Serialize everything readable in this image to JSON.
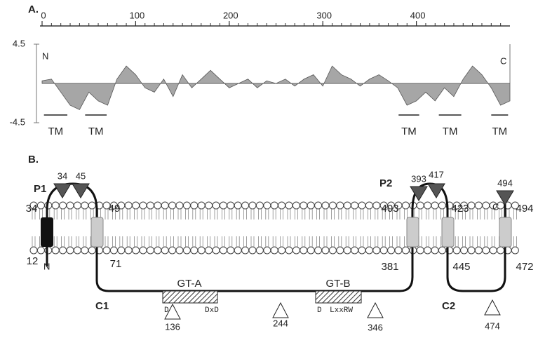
{
  "panel_a": {
    "label": "A.",
    "xlim": [
      0,
      500
    ],
    "xticks": [
      0,
      100,
      200,
      300,
      400
    ],
    "ylim": [
      -4.5,
      4.5
    ],
    "yticks": [
      4.5,
      -4.5
    ],
    "x": [
      0,
      10,
      20,
      30,
      40,
      50,
      60,
      70,
      80,
      90,
      100,
      110,
      120,
      130,
      140,
      150,
      160,
      170,
      180,
      190,
      200,
      210,
      220,
      230,
      240,
      250,
      260,
      270,
      280,
      290,
      300,
      310,
      320,
      330,
      340,
      350,
      360,
      370,
      380,
      390,
      400,
      410,
      420,
      430,
      440,
      450,
      460,
      470,
      480,
      490,
      500
    ],
    "values": [
      0.3,
      0.5,
      -1,
      -2.5,
      -3,
      -1,
      -2,
      -2.5,
      0.5,
      2,
      1,
      -0.5,
      -1,
      0.5,
      -1.5,
      1,
      -0.5,
      0.5,
      1.5,
      0.5,
      -0.5,
      0,
      0.5,
      -0.5,
      0.3,
      0,
      0.5,
      -0.3,
      0.5,
      1,
      -0.3,
      2,
      1,
      0.5,
      -0.3,
      0.5,
      1,
      0.3,
      -0.5,
      -2.5,
      -2,
      -1,
      -2,
      -0.5,
      -1.5,
      0.5,
      2,
      1,
      -0.5,
      -2.5,
      -2
    ],
    "color": "#a6a6a6",
    "n_label": "N",
    "c_label": "C",
    "tm": [
      {
        "label": "TM",
        "range": [
          2,
          27
        ]
      },
      {
        "label": "TM",
        "range": [
          46,
          69
        ]
      },
      {
        "label": "TM",
        "range": [
          381,
          403
        ]
      },
      {
        "label": "TM",
        "range": [
          424,
          448
        ]
      },
      {
        "label": "TM",
        "range": [
          480,
          498
        ]
      }
    ]
  },
  "panel_b": {
    "label": "B.",
    "loops": [
      "P1",
      "C1",
      "P2",
      "C2"
    ],
    "termini": [
      "N",
      "C"
    ],
    "boundaries": [
      34,
      49,
      12,
      71,
      403,
      423,
      381,
      445,
      472,
      494
    ],
    "sites": [
      {
        "position": 34,
        "color": "#555555"
      },
      {
        "position": 45,
        "color": "#555555"
      },
      {
        "position": 393,
        "color": "#555555"
      },
      {
        "position": 417,
        "color": "#555555"
      },
      {
        "position": 494,
        "color": "#555555"
      },
      {
        "position": 136,
        "color": "#ffffff"
      },
      {
        "position": 244,
        "color": "#ffffff"
      },
      {
        "position": 346,
        "color": "#ffffff"
      },
      {
        "position": 474,
        "color": "#ffffff"
      }
    ],
    "domains": [
      {
        "name": "GT-A",
        "motif": [
          "D",
          "DxD"
        ]
      },
      {
        "name": "GT-B",
        "motif": [
          "D",
          "LxxRW"
        ]
      }
    ]
  }
}
